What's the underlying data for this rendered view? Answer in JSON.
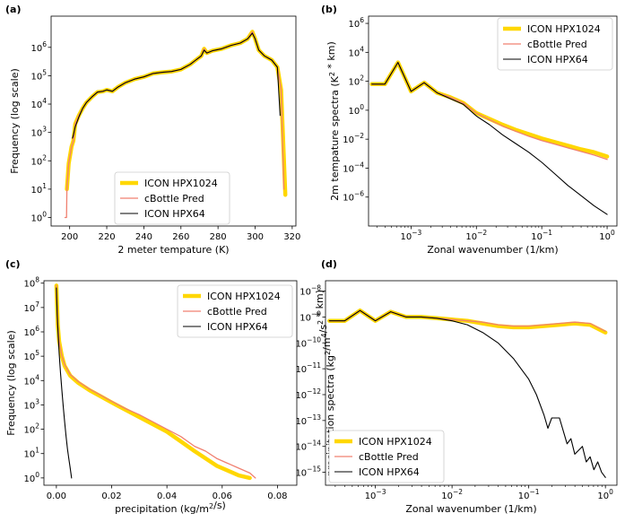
{
  "colors": {
    "hpx1024": "#FFD700",
    "cbottle": "#F08070",
    "hpx64": "#000000"
  },
  "chart_data": [
    {
      "label": "(a)",
      "type": "line",
      "yscale": "log",
      "xlabel": "2 meter tempature (K)",
      "ylabel": "Frequency (log scale)",
      "xlim": [
        190,
        322
      ],
      "ylim_exp": [
        -0.3,
        7.1
      ],
      "xticks": [
        "200",
        "220",
        "240",
        "260",
        "280",
        "300",
        "320"
      ],
      "yticks": [
        "10^0",
        "10^1",
        "10^2",
        "10^3",
        "10^4",
        "10^5",
        "10^6"
      ],
      "legend": {
        "loc": "lower-center",
        "entries": [
          "ICON HPX1024",
          "cBottle Pred",
          "ICON HPX64"
        ]
      },
      "series": [
        {
          "name": "ICON HPX1024",
          "color_key": "hpx1024",
          "x": [
            198.5,
            199.5,
            201,
            202,
            203,
            205,
            207,
            209,
            212,
            215,
            218,
            220,
            223,
            226,
            230,
            235,
            240,
            245,
            250,
            255,
            260,
            265,
            268,
            271,
            272.5,
            274,
            277,
            282,
            287,
            292,
            296,
            298.5,
            300,
            302,
            305,
            309,
            312,
            314,
            316.3
          ],
          "logy": [
            1.0,
            1.9,
            2.5,
            2.7,
            3.3,
            3.6,
            3.85,
            4.05,
            4.25,
            4.42,
            4.45,
            4.5,
            4.45,
            4.6,
            4.75,
            4.88,
            4.96,
            5.08,
            5.12,
            5.15,
            5.22,
            5.4,
            5.55,
            5.7,
            5.95,
            5.8,
            5.88,
            5.95,
            6.07,
            6.15,
            6.3,
            6.55,
            6.3,
            5.9,
            5.7,
            5.55,
            5.3,
            4.5,
            0.8
          ]
        },
        {
          "name": "cBottle Pred",
          "color_key": "cbottle",
          "x": [
            197.5,
            198.3,
            198.5,
            199.5,
            201,
            202,
            203,
            205,
            207,
            209,
            212,
            215,
            218,
            220,
            223,
            226,
            230,
            235,
            240,
            245,
            250,
            255,
            260,
            265,
            268,
            271,
            272.5,
            274,
            277,
            282,
            287,
            292,
            296,
            298.5,
            300,
            302,
            305,
            309,
            312,
            314,
            315.5
          ],
          "logy": [
            0.0,
            0.0,
            1.0,
            1.9,
            2.5,
            2.7,
            3.3,
            3.6,
            3.85,
            4.05,
            4.25,
            4.42,
            4.45,
            4.5,
            4.45,
            4.6,
            4.75,
            4.88,
            4.96,
            5.08,
            5.12,
            5.15,
            5.22,
            5.4,
            5.55,
            5.7,
            5.95,
            5.8,
            5.88,
            5.95,
            6.07,
            6.15,
            6.3,
            6.55,
            6.3,
            5.9,
            5.7,
            5.55,
            5.3,
            4.5,
            1.0
          ]
        },
        {
          "name": "ICON HPX64",
          "color_key": "hpx64",
          "x": [
            201.5,
            202,
            203,
            205,
            207,
            209,
            212,
            215,
            218,
            220,
            223,
            226,
            230,
            235,
            240,
            245,
            250,
            255,
            260,
            265,
            268,
            271,
            272.5,
            274,
            277,
            282,
            287,
            292,
            296,
            298.5,
            300,
            302,
            305,
            309,
            312,
            313.5
          ],
          "logy": [
            2.8,
            2.9,
            3.2,
            3.55,
            3.85,
            4.05,
            4.25,
            4.42,
            4.45,
            4.5,
            4.45,
            4.6,
            4.75,
            4.88,
            4.96,
            5.08,
            5.12,
            5.15,
            5.22,
            5.4,
            5.55,
            5.7,
            5.9,
            5.8,
            5.88,
            5.95,
            6.07,
            6.15,
            6.3,
            6.5,
            6.3,
            5.9,
            5.7,
            5.55,
            5.3,
            3.6
          ]
        }
      ]
    },
    {
      "label": "(b)",
      "type": "line",
      "xscale": "log",
      "yscale": "log",
      "xlabel": "Zonal wavenumber (1/km)",
      "ylabel": "2m tempature spectra (K^2 * km)",
      "xlim_exp": [
        -3.65,
        0.15
      ],
      "ylim_exp": [
        -8.0,
        6.5
      ],
      "xticks": [
        "10^-3",
        "10^-2",
        "10^-1",
        "10^0"
      ],
      "yticks": [
        "10^-6",
        "10^-4",
        "10^-2",
        "10^0",
        "10^2",
        "10^4",
        "10^6"
      ],
      "legend": {
        "loc": "upper-right",
        "entries": [
          "ICON HPX1024",
          "cBottle Pred",
          "ICON HPX64"
        ]
      },
      "series": [
        {
          "name": "ICON HPX1024",
          "color_key": "hpx1024",
          "logx": [
            -3.6,
            -3.4,
            -3.2,
            -3.0,
            -2.8,
            -2.6,
            -2.4,
            -2.2,
            -2.0,
            -1.8,
            -1.6,
            -1.4,
            -1.2,
            -1.0,
            -0.8,
            -0.6,
            -0.4,
            -0.2,
            0.0
          ],
          "logy": [
            1.8,
            1.8,
            3.3,
            1.3,
            1.9,
            1.2,
            0.9,
            0.5,
            -0.2,
            -0.6,
            -1.0,
            -1.35,
            -1.65,
            -1.95,
            -2.2,
            -2.45,
            -2.7,
            -2.9,
            -3.2
          ]
        },
        {
          "name": "cBottle Pred",
          "color_key": "cbottle",
          "logx": [
            -3.6,
            -3.4,
            -3.2,
            -3.0,
            -2.8,
            -2.6,
            -2.4,
            -2.2,
            -2.0,
            -1.8,
            -1.6,
            -1.4,
            -1.2,
            -1.0,
            -0.8,
            -0.6,
            -0.4,
            -0.2,
            0.0
          ],
          "logy": [
            1.8,
            1.8,
            3.3,
            1.3,
            1.9,
            1.2,
            0.9,
            0.5,
            -0.2,
            -0.65,
            -1.1,
            -1.45,
            -1.8,
            -2.1,
            -2.35,
            -2.6,
            -2.85,
            -3.1,
            -3.4
          ]
        },
        {
          "name": "ICON HPX64",
          "color_key": "hpx64",
          "logx": [
            -3.6,
            -3.4,
            -3.2,
            -3.0,
            -2.8,
            -2.6,
            -2.4,
            -2.2,
            -2.0,
            -1.8,
            -1.6,
            -1.4,
            -1.2,
            -1.0,
            -0.8,
            -0.6,
            -0.4,
            -0.2,
            0.0
          ],
          "logy": [
            1.8,
            1.8,
            3.3,
            1.3,
            1.9,
            1.2,
            0.8,
            0.4,
            -0.4,
            -1.0,
            -1.7,
            -2.3,
            -2.9,
            -3.6,
            -4.4,
            -5.2,
            -5.9,
            -6.6,
            -7.2
          ]
        }
      ]
    },
    {
      "label": "(c)",
      "type": "line",
      "yscale": "log",
      "xlabel": "precipitation (kg/m^2/s)",
      "ylabel": "Frequency (log scale)",
      "xlim": [
        -0.0045,
        0.087
      ],
      "ylim_exp": [
        -0.3,
        8.1
      ],
      "xticks": [
        "0.00",
        "0.02",
        "0.04",
        "0.06",
        "0.08"
      ],
      "yticks": [
        "10^0",
        "10^1",
        "10^2",
        "10^3",
        "10^4",
        "10^5",
        "10^6",
        "10^7",
        "10^8"
      ],
      "legend": {
        "loc": "upper-right",
        "entries": [
          "ICON HPX1024",
          "cBottle Pred",
          "ICON HPX64"
        ]
      },
      "series": [
        {
          "name": "ICON HPX1024",
          "color_key": "hpx1024",
          "x": [
            0.0,
            0.0005,
            0.001,
            0.002,
            0.003,
            0.005,
            0.008,
            0.012,
            0.016,
            0.02,
            0.025,
            0.03,
            0.035,
            0.04,
            0.045,
            0.05,
            0.054,
            0.058,
            0.062,
            0.066,
            0.07
          ],
          "logy": [
            7.9,
            6.3,
            5.6,
            5.0,
            4.6,
            4.2,
            3.9,
            3.6,
            3.35,
            3.1,
            2.8,
            2.5,
            2.2,
            1.9,
            1.5,
            1.1,
            0.8,
            0.5,
            0.3,
            0.1,
            0.0
          ]
        },
        {
          "name": "cBottle Pred",
          "color_key": "cbottle",
          "x": [
            0.0,
            0.0005,
            0.001,
            0.002,
            0.003,
            0.005,
            0.008,
            0.012,
            0.016,
            0.02,
            0.025,
            0.03,
            0.035,
            0.04,
            0.045,
            0.05,
            0.054,
            0.058,
            0.062,
            0.066,
            0.07,
            0.072
          ],
          "logy": [
            7.9,
            6.3,
            5.6,
            5.0,
            4.65,
            4.25,
            3.95,
            3.65,
            3.4,
            3.15,
            2.85,
            2.6,
            2.3,
            2.0,
            1.7,
            1.3,
            1.1,
            0.8,
            0.6,
            0.4,
            0.2,
            0.0
          ]
        },
        {
          "name": "ICON HPX64",
          "color_key": "hpx64",
          "x": [
            0.0,
            0.0003,
            0.0006,
            0.001,
            0.0015,
            0.002,
            0.0025,
            0.003,
            0.0035,
            0.004,
            0.0045,
            0.005,
            0.0055
          ],
          "logy": [
            7.8,
            6.7,
            6.0,
            5.1,
            4.3,
            3.6,
            2.9,
            2.3,
            1.7,
            1.2,
            0.8,
            0.4,
            0.0
          ]
        }
      ]
    },
    {
      "label": "(d)",
      "type": "line",
      "xscale": "log",
      "yscale": "log",
      "xlabel": "Zonal wavenumber (1/km)",
      "ylabel": "precipitation spectra (kg^2/m^4/s^2 * km)",
      "xlim_exp": [
        -3.65,
        0.15
      ],
      "ylim_exp": [
        -15.5,
        -7.6
      ],
      "xticks": [
        "10^-3",
        "10^-2",
        "10^-1",
        "10^0"
      ],
      "yticks": [
        "10^-15",
        "10^-14",
        "10^-13",
        "10^-12",
        "10^-11",
        "10^-10",
        "10^-9",
        "10^-8"
      ],
      "legend": {
        "loc": "lower-left",
        "entries": [
          "ICON HPX1024",
          "cBottle Pred",
          "ICON HPX64"
        ]
      },
      "series": [
        {
          "name": "ICON HPX1024",
          "color_key": "hpx1024",
          "logx": [
            -3.6,
            -3.4,
            -3.2,
            -3.0,
            -2.8,
            -2.6,
            -2.4,
            -2.2,
            -2.0,
            -1.8,
            -1.6,
            -1.4,
            -1.2,
            -1.0,
            -0.8,
            -0.6,
            -0.4,
            -0.2,
            0.0
          ],
          "logy": [
            -9.15,
            -9.15,
            -8.75,
            -9.15,
            -8.8,
            -9.0,
            -9.0,
            -9.05,
            -9.1,
            -9.15,
            -9.25,
            -9.35,
            -9.4,
            -9.4,
            -9.35,
            -9.3,
            -9.25,
            -9.3,
            -9.6
          ]
        },
        {
          "name": "cBottle Pred",
          "color_key": "cbottle",
          "logx": [
            -3.6,
            -3.4,
            -3.2,
            -3.0,
            -2.8,
            -2.6,
            -2.4,
            -2.2,
            -2.0,
            -1.8,
            -1.6,
            -1.4,
            -1.2,
            -1.0,
            -0.8,
            -0.6,
            -0.4,
            -0.2,
            0.0
          ],
          "logy": [
            -9.15,
            -9.15,
            -8.75,
            -9.15,
            -8.8,
            -9.0,
            -9.0,
            -9.05,
            -9.1,
            -9.15,
            -9.2,
            -9.3,
            -9.35,
            -9.35,
            -9.3,
            -9.25,
            -9.2,
            -9.25,
            -9.55
          ]
        },
        {
          "name": "ICON HPX64",
          "color_key": "hpx64",
          "logx": [
            -3.6,
            -3.4,
            -3.2,
            -3.0,
            -2.8,
            -2.6,
            -2.4,
            -2.2,
            -2.0,
            -1.8,
            -1.6,
            -1.4,
            -1.2,
            -1.0,
            -0.9,
            -0.8,
            -0.75,
            -0.7,
            -0.6,
            -0.5,
            -0.45,
            -0.4,
            -0.3,
            -0.25,
            -0.2,
            -0.15,
            -0.1,
            -0.05,
            0.0
          ],
          "logy": [
            -9.15,
            -9.15,
            -8.75,
            -9.15,
            -8.8,
            -9.0,
            -9.0,
            -9.05,
            -9.15,
            -9.3,
            -9.6,
            -10.0,
            -10.6,
            -11.4,
            -12.0,
            -12.8,
            -13.3,
            -12.9,
            -12.9,
            -13.9,
            -13.7,
            -14.3,
            -14.0,
            -14.6,
            -14.4,
            -14.9,
            -14.6,
            -15.0,
            -15.2
          ]
        }
      ]
    }
  ]
}
